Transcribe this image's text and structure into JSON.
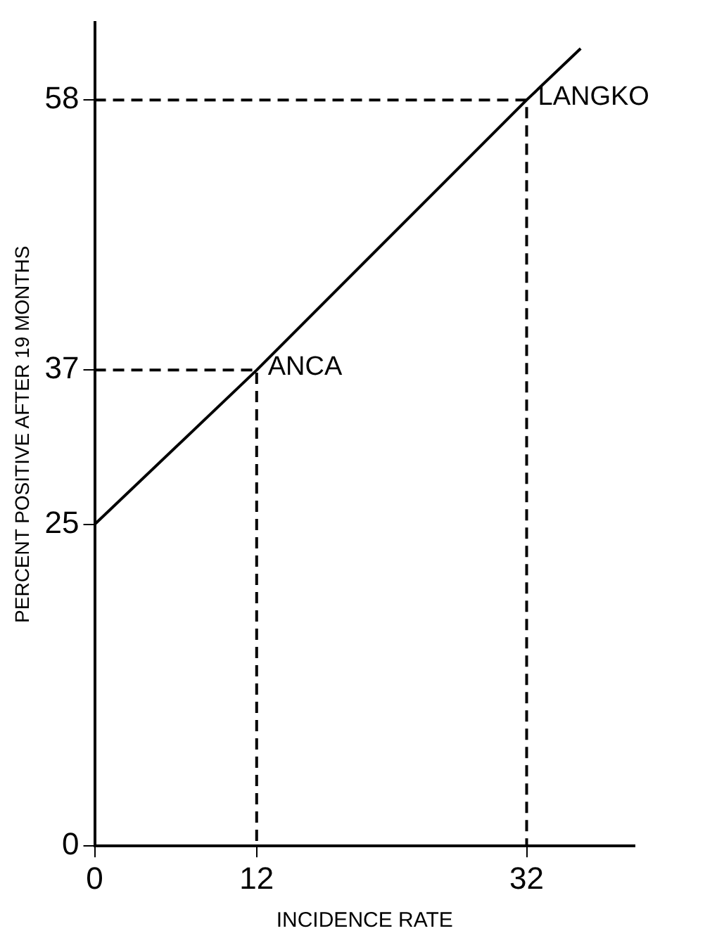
{
  "chart_data": {
    "type": "line",
    "xlabel": "INCIDENCE RATE",
    "ylabel": "PERCENT POSITIVE AFTER 19 MONTHS",
    "xlim": [
      0,
      40
    ],
    "ylim": [
      0,
      64
    ],
    "xticks": [
      0,
      12,
      32
    ],
    "yticks": [
      0,
      25,
      37,
      58
    ],
    "grid": false,
    "legend": false,
    "marker": "none",
    "series": [
      {
        "color": "#000000",
        "x": [
          0,
          12,
          32,
          36
        ],
        "values": [
          25,
          37,
          58,
          62
        ],
        "line_style": "solid"
      },
      {
        "color": "#000000",
        "x": [
          0,
          12,
          12
        ],
        "values": [
          37,
          37,
          0
        ],
        "line_style": "dashed"
      },
      {
        "color": "#000000",
        "x": [
          0,
          32,
          32
        ],
        "values": [
          58,
          58,
          0
        ],
        "line_style": "dashed"
      }
    ],
    "annotations": [
      {
        "text": "ANCA",
        "x": 12,
        "y": 37
      },
      {
        "text": "LANGKO",
        "x": 32,
        "y": 58
      }
    ]
  }
}
